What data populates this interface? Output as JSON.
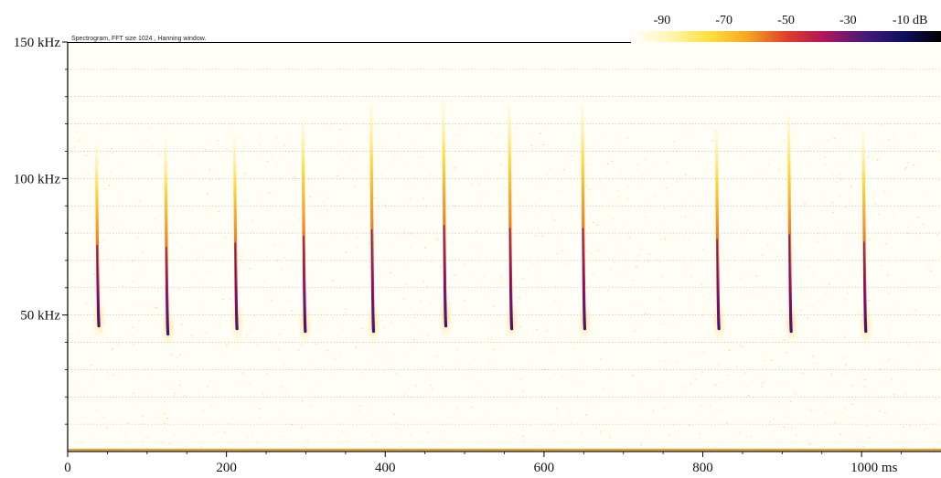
{
  "chart_data": {
    "type": "heatmap",
    "title": "Spectrogram, FFT size 1024 , Hanning window.",
    "xlabel": "",
    "ylabel": "",
    "x_unit": "ms",
    "y_unit": "kHz",
    "xlim": [
      0,
      1100
    ],
    "ylim": [
      0,
      150
    ],
    "x_ticks": [
      0,
      200,
      400,
      600,
      800,
      1000
    ],
    "x_tick_labels": [
      "0",
      "200",
      "400",
      "600",
      "800",
      "1000 ms"
    ],
    "y_ticks": [
      50,
      100,
      150
    ],
    "y_tick_labels": [
      "50 kHz",
      "100 kHz",
      "150 kHz"
    ],
    "grid": true,
    "grid_y_step_khz": 10,
    "colorbar": {
      "unit": "dB",
      "ticks": [
        -90,
        -70,
        -50,
        -30,
        -10
      ],
      "tick_labels": [
        "-90",
        "-70",
        "-50",
        "-30",
        "-10 dB"
      ],
      "range": [
        -100,
        0
      ],
      "colors": [
        "#ffffff",
        "#fff6b0",
        "#ffe23c",
        "#f5a623",
        "#e0402a",
        "#b0145a",
        "#4a1a7a",
        "#101060",
        "#000000"
      ]
    },
    "pulses": [
      {
        "t_ms": 37,
        "f_start_khz": 112,
        "f_end_khz": 46
      },
      {
        "t_ms": 124,
        "f_start_khz": 114,
        "f_end_khz": 43
      },
      {
        "t_ms": 211,
        "f_start_khz": 115,
        "f_end_khz": 45
      },
      {
        "t_ms": 297,
        "f_start_khz": 122,
        "f_end_khz": 44
      },
      {
        "t_ms": 383,
        "f_start_khz": 127,
        "f_end_khz": 44
      },
      {
        "t_ms": 474,
        "f_start_khz": 128,
        "f_end_khz": 46
      },
      {
        "t_ms": 557,
        "f_start_khz": 127,
        "f_end_khz": 45
      },
      {
        "t_ms": 649,
        "f_start_khz": 127,
        "f_end_khz": 45
      },
      {
        "t_ms": 818,
        "f_start_khz": 118,
        "f_end_khz": 45
      },
      {
        "t_ms": 909,
        "f_start_khz": 123,
        "f_end_khz": 44
      },
      {
        "t_ms": 1003,
        "f_start_khz": 117,
        "f_end_khz": 44
      }
    ]
  }
}
